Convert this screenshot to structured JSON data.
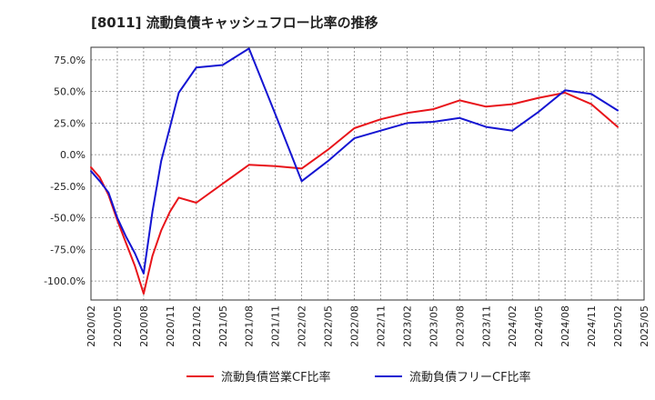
{
  "chart_data": {
    "type": "line",
    "title": "[8011]  流動負債キャッシュフロー比率の推移",
    "xlabel": "",
    "ylabel": "",
    "ylim": [
      -115,
      85
    ],
    "yticks": [
      {
        "value": 75,
        "label": "75.0%"
      },
      {
        "value": 50,
        "label": "50.0%"
      },
      {
        "value": 25,
        "label": "25.0%"
      },
      {
        "value": 0,
        "label": "0.0%"
      },
      {
        "value": -25,
        "label": "-25.0%"
      },
      {
        "value": -50,
        "label": "-50.0%"
      },
      {
        "value": -75,
        "label": "-75.0%"
      },
      {
        "value": -100,
        "label": "-100.0%"
      }
    ],
    "xlim_months": [
      0,
      63
    ],
    "xticks": [
      {
        "value": 0,
        "label": "2020/02"
      },
      {
        "value": 3,
        "label": "2020/05"
      },
      {
        "value": 6,
        "label": "2020/08"
      },
      {
        "value": 9,
        "label": "2020/11"
      },
      {
        "value": 12,
        "label": "2021/02"
      },
      {
        "value": 15,
        "label": "2021/05"
      },
      {
        "value": 18,
        "label": "2021/08"
      },
      {
        "value": 21,
        "label": "2021/11"
      },
      {
        "value": 24,
        "label": "2022/02"
      },
      {
        "value": 27,
        "label": "2022/05"
      },
      {
        "value": 30,
        "label": "2022/08"
      },
      {
        "value": 33,
        "label": "2022/11"
      },
      {
        "value": 36,
        "label": "2023/02"
      },
      {
        "value": 39,
        "label": "2023/05"
      },
      {
        "value": 42,
        "label": "2023/08"
      },
      {
        "value": 45,
        "label": "2023/11"
      },
      {
        "value": 48,
        "label": "2024/02"
      },
      {
        "value": 51,
        "label": "2024/05"
      },
      {
        "value": 54,
        "label": "2024/08"
      },
      {
        "value": 57,
        "label": "2024/11"
      },
      {
        "value": 60,
        "label": "2025/02"
      },
      {
        "value": 63,
        "label": "2025/05"
      }
    ],
    "grid": true,
    "legend_position": "bottom",
    "series": [
      {
        "name": "流動負債営業CF比率",
        "color": "#e8141a",
        "points": [
          [
            0,
            -10
          ],
          [
            1,
            -18
          ],
          [
            2,
            -32
          ],
          [
            3,
            -52
          ],
          [
            4,
            -70
          ],
          [
            5,
            -88
          ],
          [
            6,
            -110
          ],
          [
            7,
            -80
          ],
          [
            8,
            -60
          ],
          [
            9,
            -45
          ],
          [
            10,
            -34
          ],
          [
            12,
            -38
          ],
          [
            15,
            -23
          ],
          [
            18,
            -8
          ],
          [
            21,
            -9
          ],
          [
            24,
            -11
          ],
          [
            27,
            4
          ],
          [
            30,
            21
          ],
          [
            33,
            28
          ],
          [
            36,
            33
          ],
          [
            39,
            36
          ],
          [
            42,
            43
          ],
          [
            45,
            38
          ],
          [
            48,
            40
          ],
          [
            51,
            45
          ],
          [
            54,
            49
          ],
          [
            57,
            40
          ],
          [
            60,
            22
          ]
        ]
      },
      {
        "name": "流動負債フリーCF比率",
        "color": "#1414d2",
        "points": [
          [
            0,
            -13
          ],
          [
            1,
            -21
          ],
          [
            2,
            -30
          ],
          [
            3,
            -50
          ],
          [
            4,
            -65
          ],
          [
            5,
            -78
          ],
          [
            6,
            -94
          ],
          [
            7,
            -45
          ],
          [
            8,
            -5
          ],
          [
            9,
            22
          ],
          [
            10,
            49
          ],
          [
            12,
            69
          ],
          [
            15,
            71
          ],
          [
            18,
            84
          ],
          [
            21,
            32
          ],
          [
            24,
            -21
          ],
          [
            27,
            -5
          ],
          [
            30,
            13
          ],
          [
            33,
            19
          ],
          [
            36,
            25
          ],
          [
            39,
            26
          ],
          [
            42,
            29
          ],
          [
            45,
            22
          ],
          [
            48,
            19
          ],
          [
            51,
            34
          ],
          [
            54,
            51
          ],
          [
            57,
            48
          ],
          [
            60,
            35
          ]
        ]
      }
    ]
  }
}
